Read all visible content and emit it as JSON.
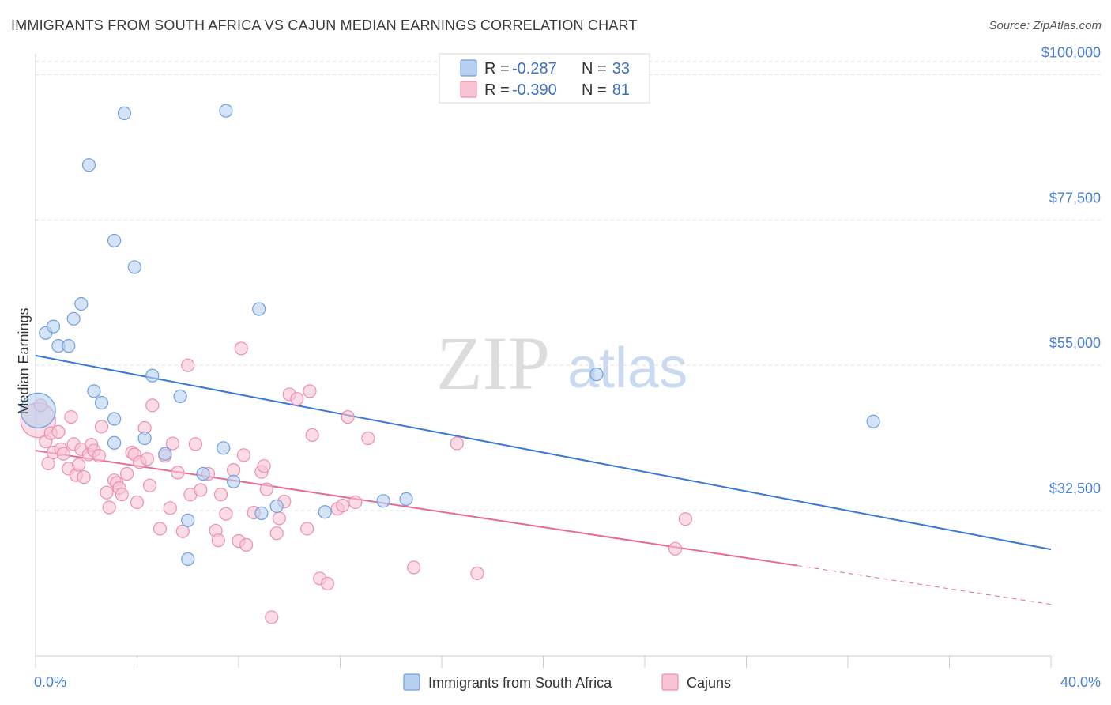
{
  "title": "IMMIGRANTS FROM SOUTH AFRICA VS CAJUN MEDIAN EARNINGS CORRELATION CHART",
  "source": "Source: ZipAtlas.com",
  "watermark": {
    "zip": "ZIP",
    "atlas": "atlas"
  },
  "legend_top": [
    {
      "r_label": "R =",
      "r_value": "-0.287",
      "n_label": "N =",
      "n_value": "33",
      "fill": "#b8d0f0",
      "stroke": "#6e9fe0"
    },
    {
      "r_label": "R =",
      "r_value": "-0.390",
      "n_label": "N =",
      "n_value": "81",
      "fill": "#f8c3d3",
      "stroke": "#ec8fae"
    }
  ],
  "legend_bottom": [
    {
      "label": "Immigrants from South Africa",
      "fill": "#b8d0f0",
      "stroke": "#6e9fe0"
    },
    {
      "label": "Cajuns",
      "fill": "#f8c3d3",
      "stroke": "#ec8fae"
    }
  ],
  "colors": {
    "blue_line": "#3a78d4",
    "pink_line": "#e76a93",
    "grid": "#dddddd",
    "axis": "#cccccc"
  },
  "chart_data": {
    "type": "scatter",
    "title": "IMMIGRANTS FROM SOUTH AFRICA VS CAJUN MEDIAN EARNINGS CORRELATION CHART",
    "xlabel": "",
    "ylabel": "Median Earnings",
    "xlim": [
      0,
      40
    ],
    "ylim": [
      10000,
      102000
    ],
    "x_tick_labels": [
      "0.0%",
      "40.0%"
    ],
    "y_ticks": [
      32500,
      55000,
      77500,
      100000
    ],
    "y_tick_labels": [
      "$32,500",
      "$55,000",
      "$77,500",
      "$100,000"
    ],
    "grid": true,
    "legend_position": "top-center",
    "series": [
      {
        "name": "Immigrants from South Africa",
        "trend": {
          "x": [
            0,
            40
          ],
          "y": [
            56500,
            26500
          ]
        },
        "points": [
          {
            "x": 0.1,
            "y": 48000,
            "big": true
          },
          {
            "x": 0.4,
            "y": 60000
          },
          {
            "x": 0.7,
            "y": 61000
          },
          {
            "x": 0.9,
            "y": 58000
          },
          {
            "x": 1.3,
            "y": 58000
          },
          {
            "x": 1.5,
            "y": 62200
          },
          {
            "x": 1.8,
            "y": 64500
          },
          {
            "x": 2.1,
            "y": 86000
          },
          {
            "x": 2.3,
            "y": 51000
          },
          {
            "x": 2.6,
            "y": 49200
          },
          {
            "x": 3.1,
            "y": 43000
          },
          {
            "x": 3.1,
            "y": 46700
          },
          {
            "x": 3.1,
            "y": 74300
          },
          {
            "x": 3.5,
            "y": 94000
          },
          {
            "x": 3.9,
            "y": 70200
          },
          {
            "x": 4.3,
            "y": 43700
          },
          {
            "x": 4.6,
            "y": 53400
          },
          {
            "x": 5.1,
            "y": 41300
          },
          {
            "x": 5.7,
            "y": 50200
          },
          {
            "x": 6.0,
            "y": 31000
          },
          {
            "x": 6.0,
            "y": 25000
          },
          {
            "x": 6.6,
            "y": 38200
          },
          {
            "x": 7.4,
            "y": 42200
          },
          {
            "x": 7.5,
            "y": 94400
          },
          {
            "x": 7.8,
            "y": 37000
          },
          {
            "x": 8.9,
            "y": 32100
          },
          {
            "x": 9.5,
            "y": 33200
          },
          {
            "x": 8.8,
            "y": 63700
          },
          {
            "x": 11.4,
            "y": 32300
          },
          {
            "x": 13.7,
            "y": 34000
          },
          {
            "x": 14.6,
            "y": 34300
          },
          {
            "x": 22.1,
            "y": 53600
          },
          {
            "x": 33.0,
            "y": 46300
          }
        ]
      },
      {
        "name": "Cajuns",
        "trend": {
          "x": [
            0,
            30
          ],
          "y": [
            41800,
            24000
          ]
        },
        "trend_dashed": {
          "x": [
            30,
            40
          ],
          "y": [
            24000,
            18000
          ]
        },
        "points": [
          {
            "x": 0.1,
            "y": 46500,
            "big": true
          },
          {
            "x": 0.2,
            "y": 48800
          },
          {
            "x": 0.4,
            "y": 43200
          },
          {
            "x": 0.5,
            "y": 39800
          },
          {
            "x": 0.6,
            "y": 44500
          },
          {
            "x": 0.7,
            "y": 41500
          },
          {
            "x": 0.9,
            "y": 44700
          },
          {
            "x": 1.0,
            "y": 42000
          },
          {
            "x": 1.1,
            "y": 41300
          },
          {
            "x": 1.3,
            "y": 39000
          },
          {
            "x": 1.4,
            "y": 47000
          },
          {
            "x": 1.5,
            "y": 42800
          },
          {
            "x": 1.6,
            "y": 38000
          },
          {
            "x": 1.7,
            "y": 39600
          },
          {
            "x": 1.8,
            "y": 42000
          },
          {
            "x": 1.9,
            "y": 37700
          },
          {
            "x": 2.1,
            "y": 41200
          },
          {
            "x": 2.2,
            "y": 42700
          },
          {
            "x": 2.3,
            "y": 41800
          },
          {
            "x": 2.5,
            "y": 41000
          },
          {
            "x": 2.6,
            "y": 45500
          },
          {
            "x": 2.8,
            "y": 35300
          },
          {
            "x": 2.9,
            "y": 33000
          },
          {
            "x": 3.1,
            "y": 37200
          },
          {
            "x": 3.2,
            "y": 36800
          },
          {
            "x": 3.3,
            "y": 36000
          },
          {
            "x": 3.4,
            "y": 35000
          },
          {
            "x": 3.6,
            "y": 38200
          },
          {
            "x": 3.8,
            "y": 41500
          },
          {
            "x": 3.9,
            "y": 41200
          },
          {
            "x": 4.0,
            "y": 33800
          },
          {
            "x": 4.1,
            "y": 40000
          },
          {
            "x": 4.3,
            "y": 45300
          },
          {
            "x": 4.4,
            "y": 40500
          },
          {
            "x": 4.5,
            "y": 36400
          },
          {
            "x": 4.6,
            "y": 48800
          },
          {
            "x": 4.9,
            "y": 29700
          },
          {
            "x": 5.1,
            "y": 41000
          },
          {
            "x": 5.3,
            "y": 32900
          },
          {
            "x": 5.4,
            "y": 42900
          },
          {
            "x": 5.6,
            "y": 38400
          },
          {
            "x": 5.8,
            "y": 29300
          },
          {
            "x": 6.0,
            "y": 55000
          },
          {
            "x": 6.1,
            "y": 35000
          },
          {
            "x": 6.3,
            "y": 42800
          },
          {
            "x": 6.5,
            "y": 35700
          },
          {
            "x": 6.8,
            "y": 38200
          },
          {
            "x": 7.1,
            "y": 29400
          },
          {
            "x": 7.2,
            "y": 27900
          },
          {
            "x": 7.3,
            "y": 35000
          },
          {
            "x": 7.5,
            "y": 32000
          },
          {
            "x": 7.8,
            "y": 38800
          },
          {
            "x": 8.0,
            "y": 27800
          },
          {
            "x": 8.1,
            "y": 57600
          },
          {
            "x": 8.2,
            "y": 41100
          },
          {
            "x": 8.3,
            "y": 27200
          },
          {
            "x": 8.6,
            "y": 32200
          },
          {
            "x": 8.9,
            "y": 38500
          },
          {
            "x": 9.0,
            "y": 39400
          },
          {
            "x": 9.1,
            "y": 35800
          },
          {
            "x": 9.3,
            "y": 16000
          },
          {
            "x": 9.5,
            "y": 29000
          },
          {
            "x": 9.6,
            "y": 31300
          },
          {
            "x": 9.8,
            "y": 33900
          },
          {
            "x": 10.0,
            "y": 50500
          },
          {
            "x": 10.3,
            "y": 49800
          },
          {
            "x": 10.7,
            "y": 29700
          },
          {
            "x": 10.8,
            "y": 51000
          },
          {
            "x": 10.9,
            "y": 44200
          },
          {
            "x": 11.2,
            "y": 22000
          },
          {
            "x": 11.5,
            "y": 21200
          },
          {
            "x": 11.9,
            "y": 32800
          },
          {
            "x": 12.1,
            "y": 33300
          },
          {
            "x": 12.3,
            "y": 47000
          },
          {
            "x": 12.6,
            "y": 33800
          },
          {
            "x": 13.1,
            "y": 43700
          },
          {
            "x": 14.9,
            "y": 23700
          },
          {
            "x": 16.6,
            "y": 42900
          },
          {
            "x": 17.4,
            "y": 22800
          },
          {
            "x": 25.2,
            "y": 26600
          },
          {
            "x": 25.6,
            "y": 31200
          }
        ]
      }
    ]
  }
}
